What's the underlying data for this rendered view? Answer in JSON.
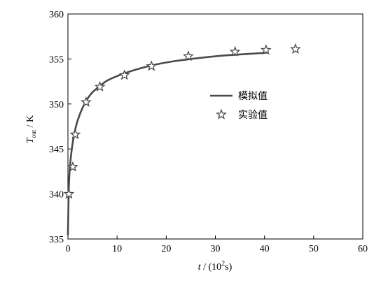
{
  "chart_data": {
    "type": "line",
    "title": "",
    "xlabel": {
      "var": "t",
      "unit_prefix": " / (10",
      "unit_sup": "2",
      "unit_suffix": "s)"
    },
    "ylabel": {
      "var": "T",
      "sub": "out",
      "unit": " / K"
    },
    "xlim": [
      0,
      60
    ],
    "ylim": [
      335,
      360
    ],
    "xticks": [
      0,
      10,
      20,
      30,
      40,
      50,
      60
    ],
    "yticks": [
      335,
      340,
      345,
      350,
      355,
      360
    ],
    "grid": false,
    "legend_position": "center-right",
    "series": [
      {
        "name": "模拟值",
        "style": "line",
        "color": "#4a4a4a",
        "x": [
          0,
          0.2,
          0.5,
          1.0,
          1.5,
          2.0,
          3.0,
          4.0,
          5.0,
          6.5,
          8.0,
          10.0,
          12.0,
          15.0,
          18.0,
          21.0,
          25.0,
          30.0,
          35.0,
          40.5
        ],
        "y": [
          335.5,
          341.0,
          343.6,
          345.8,
          347.2,
          348.2,
          349.6,
          350.6,
          351.3,
          352.0,
          352.6,
          353.1,
          353.5,
          354.0,
          354.4,
          354.7,
          355.0,
          355.3,
          355.5,
          355.7
        ]
      },
      {
        "name": "实验值",
        "style": "marker",
        "marker": "star",
        "color": "#4a4a4a",
        "x": [
          0.2,
          1.0,
          1.5,
          3.7,
          6.5,
          11.5,
          17.0,
          24.5,
          34.0,
          40.3,
          46.3
        ],
        "y": [
          340.0,
          343.0,
          346.6,
          350.2,
          351.9,
          353.2,
          354.2,
          355.3,
          355.8,
          356.0,
          356.1
        ]
      }
    ]
  }
}
